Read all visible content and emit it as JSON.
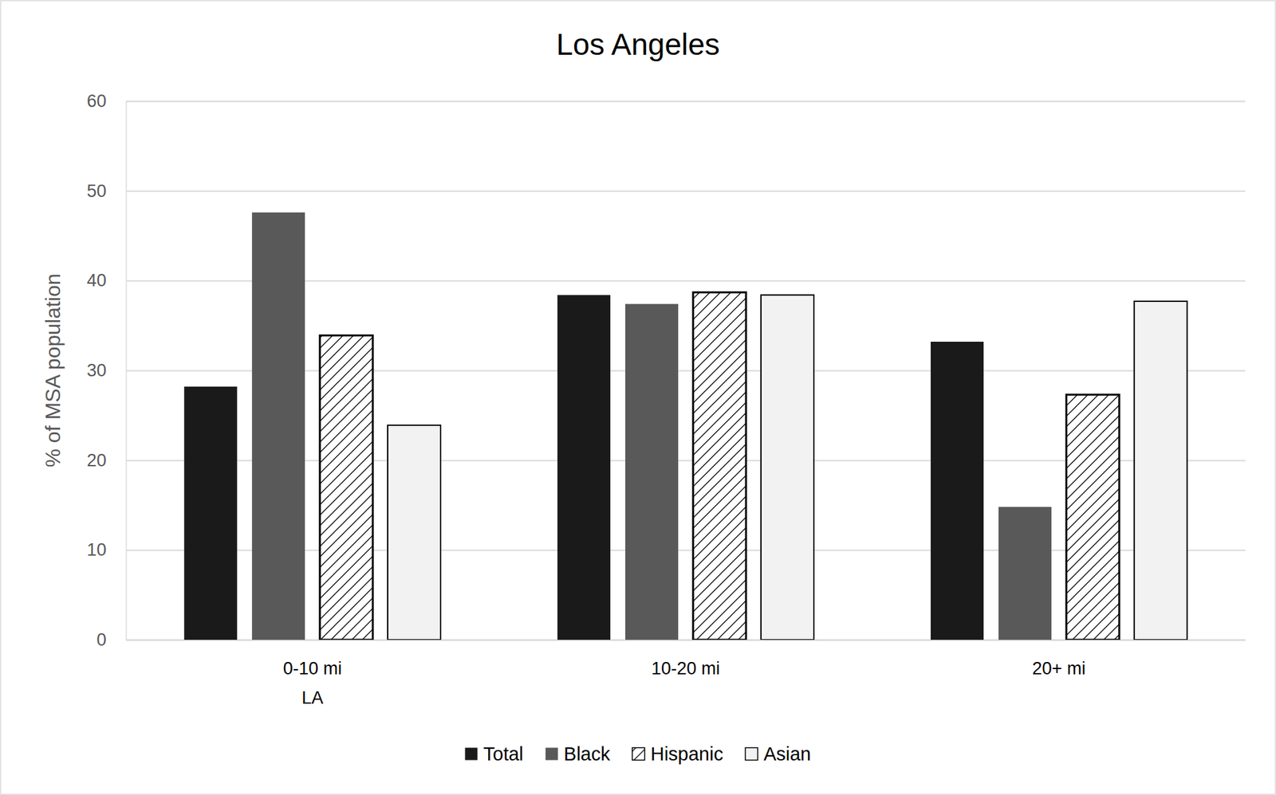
{
  "chart_data": {
    "type": "bar",
    "title": "Los Angeles",
    "y_label": "% of MSA population",
    "categories": [
      "0-10 mi\nLA",
      "10-20 mi",
      "20+ mi"
    ],
    "series": [
      {
        "name": "Total",
        "color": "#1a1a1a",
        "values": [
          28.2,
          38.4,
          33.2
        ]
      },
      {
        "name": "Black",
        "color": "#595959",
        "values": [
          47.6,
          37.4,
          14.8
        ]
      },
      {
        "name": "Hispanic",
        "color": "#ffffff",
        "values": [
          33.9,
          38.7,
          27.3
        ]
      },
      {
        "name": "Asian",
        "color": "#f2f2f2",
        "values": [
          23.9,
          38.4,
          37.7
        ]
      }
    ],
    "ylim": [
      0,
      60
    ],
    "yticks": [
      0,
      10,
      20,
      30,
      40,
      50,
      60
    ],
    "grid": true,
    "legend": "bottom"
  }
}
